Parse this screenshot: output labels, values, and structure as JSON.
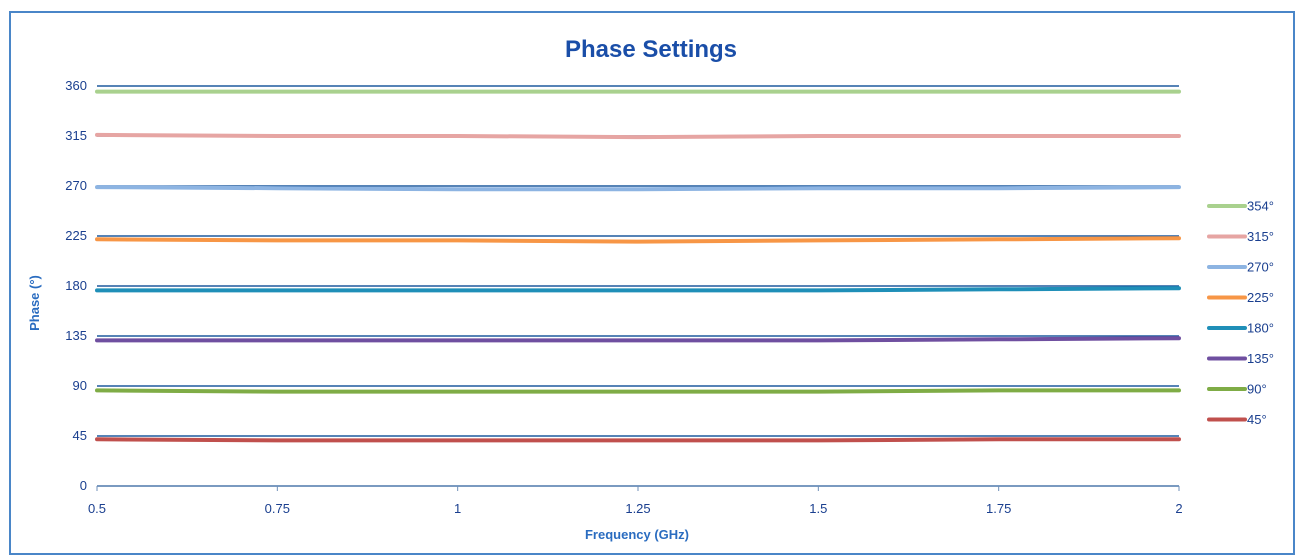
{
  "chart_data": {
    "type": "line",
    "title": "Phase Settings",
    "xlabel": "Frequency (GHz)",
    "ylabel": "Phase (°)",
    "xlim": [
      0.5,
      2
    ],
    "ylim": [
      0,
      360
    ],
    "x_ticks": [
      "0.5",
      "0.75",
      "1",
      "1.25",
      "1.5",
      "1.75",
      "2"
    ],
    "x_tick_values": [
      0.5,
      0.75,
      1,
      1.25,
      1.5,
      1.75,
      2
    ],
    "y_ticks": [
      "0",
      "45",
      "90",
      "135",
      "180",
      "225",
      "270",
      "315",
      "360"
    ],
    "y_tick_values": [
      0,
      45,
      90,
      135,
      180,
      225,
      270,
      315,
      360
    ],
    "grid": true,
    "grid_color": "#1f5a9e",
    "legend_position": "right",
    "x": [
      0.5,
      0.75,
      1,
      1.25,
      1.5,
      1.75,
      2
    ],
    "series": [
      {
        "name": "354°",
        "color": "#a9d18e",
        "values": [
          355,
          355,
          355,
          355,
          355,
          355,
          355
        ]
      },
      {
        "name": "315°",
        "color": "#e6a5a3",
        "values": [
          316,
          315,
          315,
          314,
          315,
          315,
          315
        ]
      },
      {
        "name": "270°",
        "color": "#8db4e2",
        "values": [
          269,
          268,
          267,
          267,
          268,
          268,
          269
        ]
      },
      {
        "name": "225°",
        "color": "#f79646",
        "values": [
          222,
          221,
          221,
          220,
          221,
          222,
          223
        ]
      },
      {
        "name": "180°",
        "color": "#1f8fb8",
        "values": [
          176,
          176,
          176,
          176,
          176,
          177,
          178
        ]
      },
      {
        "name": "135°",
        "color": "#6f4fa0",
        "values": [
          131,
          131,
          131,
          131,
          131,
          132,
          133
        ]
      },
      {
        "name": "90°",
        "color": "#7fac46",
        "values": [
          86,
          85,
          85,
          85,
          85,
          86,
          86
        ]
      },
      {
        "name": "45°",
        "color": "#c0504d",
        "values": [
          42,
          41,
          41,
          41,
          41,
          42,
          42
        ]
      }
    ]
  }
}
